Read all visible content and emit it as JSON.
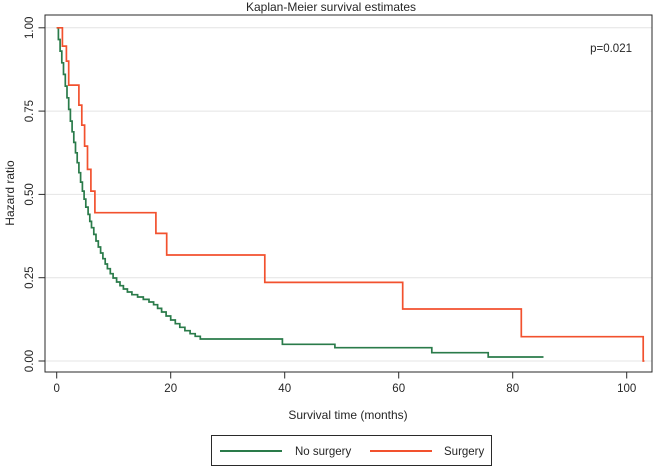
{
  "chart_data": {
    "type": "line",
    "subtype": "kaplan-meier-step",
    "title": "Kaplan-Meier survival estimates",
    "annotation": "p=0.021",
    "xlabel": "Survival time (months)",
    "ylabel": "Hazard ratio",
    "xticks": [
      0,
      20,
      40,
      60,
      80,
      100
    ],
    "ytick_labels": [
      "0.00",
      "0.25",
      "0.50",
      "0.75",
      "1.00"
    ],
    "ytick_values": [
      0,
      0.25,
      0.5,
      0.75,
      1.0
    ],
    "xlim": [
      -2.1,
      104.4
    ],
    "ylim": [
      -0.034,
      1.04
    ],
    "grid": true,
    "legend_position": "bottom",
    "series": [
      {
        "name": "No surgery",
        "color": "#2a7b4a",
        "end": 85.4,
        "steps": [
          [
            0,
            1.0
          ],
          [
            0.3,
            0.965
          ],
          [
            0.6,
            0.93
          ],
          [
            0.9,
            0.895
          ],
          [
            1.2,
            0.86
          ],
          [
            1.5,
            0.825
          ],
          [
            1.8,
            0.79
          ],
          [
            2.1,
            0.755
          ],
          [
            2.4,
            0.72
          ],
          [
            2.7,
            0.688
          ],
          [
            3.0,
            0.656
          ],
          [
            3.3,
            0.625
          ],
          [
            3.6,
            0.595
          ],
          [
            3.9,
            0.565
          ],
          [
            4.2,
            0.537
          ],
          [
            4.5,
            0.51
          ],
          [
            4.8,
            0.486
          ],
          [
            5.1,
            0.462
          ],
          [
            5.5,
            0.44
          ],
          [
            5.8,
            0.419
          ],
          [
            6.1,
            0.4
          ],
          [
            6.5,
            0.38
          ],
          [
            6.9,
            0.36
          ],
          [
            7.3,
            0.342
          ],
          [
            7.7,
            0.324
          ],
          [
            8.1,
            0.307
          ],
          [
            8.5,
            0.291
          ],
          [
            8.9,
            0.277
          ],
          [
            9.4,
            0.262
          ],
          [
            9.9,
            0.249
          ],
          [
            10.5,
            0.237
          ],
          [
            11.1,
            0.226
          ],
          [
            11.7,
            0.216
          ],
          [
            12.4,
            0.207
          ],
          [
            13.2,
            0.199
          ],
          [
            14.2,
            0.192
          ],
          [
            15.2,
            0.185
          ],
          [
            16.2,
            0.177
          ],
          [
            17.0,
            0.169
          ],
          [
            17.7,
            0.158
          ],
          [
            18.4,
            0.147
          ],
          [
            19.2,
            0.135
          ],
          [
            20.0,
            0.123
          ],
          [
            20.8,
            0.112
          ],
          [
            21.6,
            0.101
          ],
          [
            22.5,
            0.091
          ],
          [
            23.4,
            0.082
          ],
          [
            24.3,
            0.074
          ],
          [
            25.2,
            0.066
          ],
          [
            39.6,
            0.05
          ],
          [
            48.8,
            0.04
          ],
          [
            65.8,
            0.025
          ],
          [
            75.7,
            0.012
          ]
        ]
      },
      {
        "name": "Surgery",
        "color": "#f2512e",
        "end": 103.1,
        "steps": [
          [
            0,
            1.0
          ],
          [
            1.0,
            0.945
          ],
          [
            1.7,
            0.9
          ],
          [
            2.1,
            0.828
          ],
          [
            3.9,
            0.768
          ],
          [
            4.4,
            0.708
          ],
          [
            4.9,
            0.645
          ],
          [
            5.4,
            0.575
          ],
          [
            6.0,
            0.51
          ],
          [
            6.7,
            0.445
          ],
          [
            17.4,
            0.383
          ],
          [
            19.3,
            0.318
          ],
          [
            36.5,
            0.236
          ],
          [
            60.7,
            0.156
          ],
          [
            81.5,
            0.073
          ],
          [
            102.9,
            0.0
          ]
        ]
      }
    ]
  }
}
